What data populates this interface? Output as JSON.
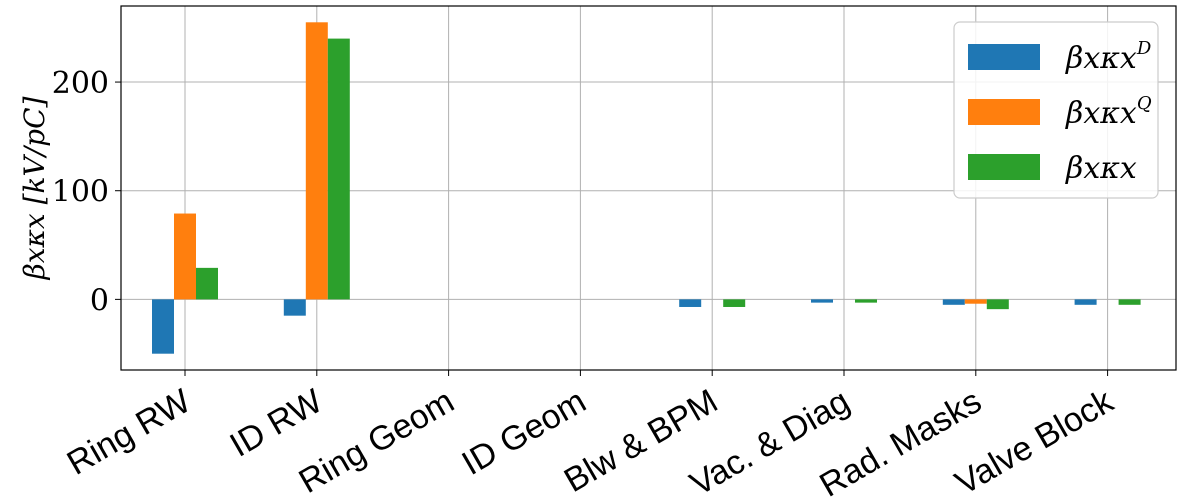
{
  "chart_data": {
    "type": "bar",
    "categories": [
      "Ring RW",
      "ID RW",
      "Ring Geom",
      "ID Geom",
      "Blw & BPM",
      "Vac. & Diag",
      "Rad. Masks",
      "Valve Block"
    ],
    "series": [
      {
        "name": "βxκx^D",
        "base": "βxκx",
        "sup": "D",
        "color": "#1f77b4",
        "values": [
          -50,
          -15,
          0,
          0,
          -7,
          -3,
          -5,
          -5
        ]
      },
      {
        "name": "βxκx^Q",
        "base": "βxκx",
        "sup": "Q",
        "color": "#ff7f0e",
        "values": [
          79,
          255,
          0,
          0,
          0,
          0,
          -4,
          0
        ]
      },
      {
        "name": "βxκx",
        "base": "βxκx",
        "sup": "",
        "color": "#2ca02c",
        "values": [
          29,
          240,
          0,
          0,
          -7,
          -3,
          -9,
          -5
        ]
      }
    ],
    "ylabel": "βxκx  [kV/pC]",
    "ylim": [
      -65,
      270
    ],
    "yticks": [
      0,
      100,
      200
    ],
    "grid": true,
    "legend_position": "top-right"
  }
}
